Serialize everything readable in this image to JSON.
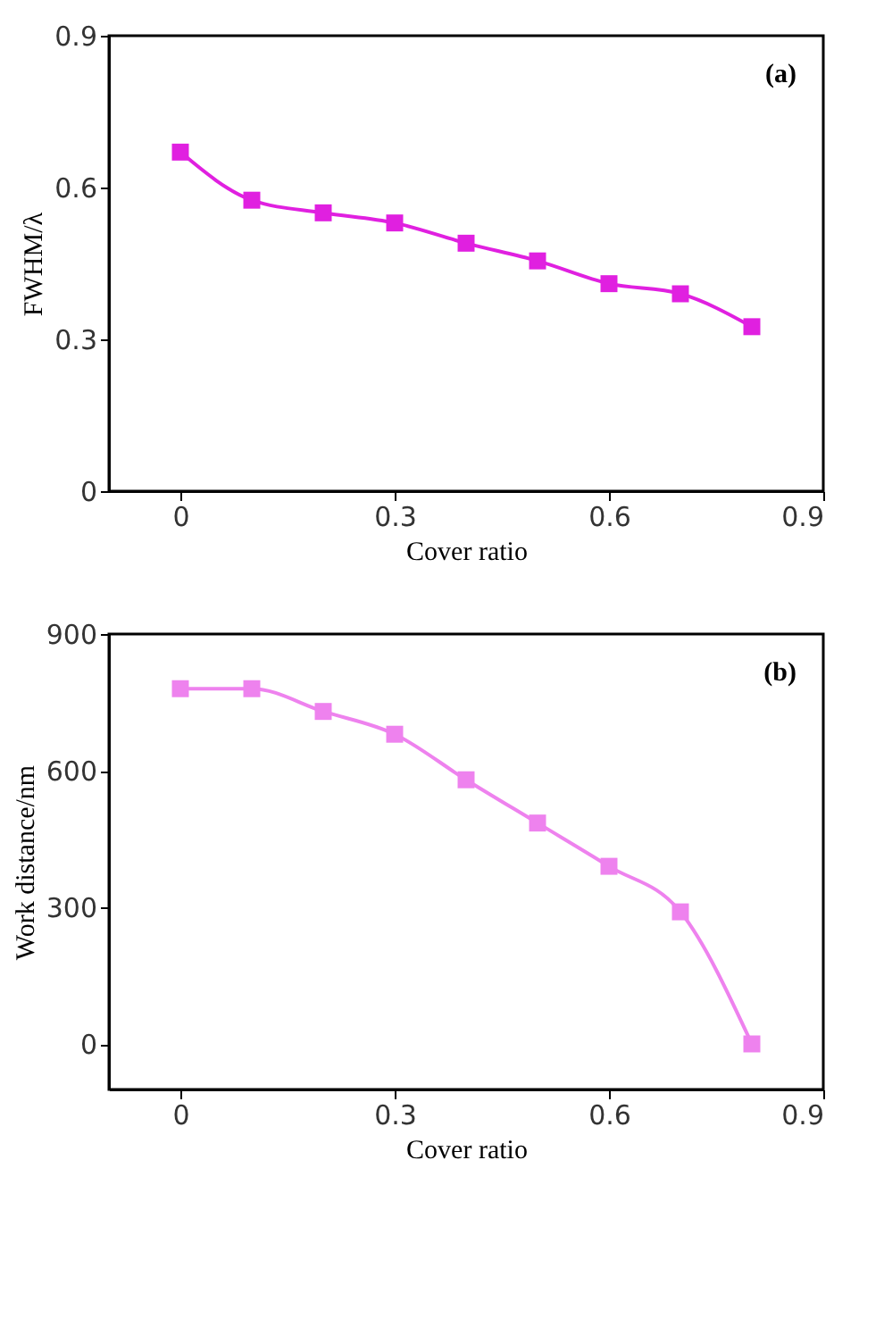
{
  "chart_data": [
    {
      "type": "line",
      "xlabel": "Cover ratio",
      "ylabel": "FWHM/λ",
      "annotations": [
        "(a)"
      ],
      "x": [
        0,
        0.1,
        0.2,
        0.3,
        0.4,
        0.5,
        0.6,
        0.7,
        0.8
      ],
      "series": [
        {
          "color": "#e020e0",
          "values": [
            0.67,
            0.575,
            0.55,
            0.53,
            0.49,
            0.455,
            0.41,
            0.39,
            0.325
          ]
        }
      ],
      "xlim": [
        -0.1,
        0.9
      ],
      "ylim": [
        0,
        0.9
      ],
      "xticks": [
        0,
        0.3,
        0.6,
        0.9
      ],
      "yticks": [
        0,
        0.3,
        0.6,
        0.9
      ],
      "grid": false,
      "marker": "square",
      "line_style": "solid"
    },
    {
      "type": "line",
      "xlabel": "Cover ratio",
      "ylabel": "Work distance/nm",
      "annotations": [
        "(b)"
      ],
      "x": [
        0,
        0.1,
        0.2,
        0.3,
        0.4,
        0.5,
        0.6,
        0.7,
        0.8
      ],
      "series": [
        {
          "color": "#ee82ee",
          "values": [
            780,
            780,
            730,
            680,
            580,
            485,
            390,
            290,
            0
          ]
        }
      ],
      "xlim": [
        -0.1,
        0.9
      ],
      "ylim": [
        -100,
        900
      ],
      "xticks": [
        0,
        0.3,
        0.6,
        0.9
      ],
      "yticks": [
        0,
        300,
        600,
        900
      ],
      "grid": false,
      "marker": "square",
      "line_style": "solid"
    }
  ]
}
